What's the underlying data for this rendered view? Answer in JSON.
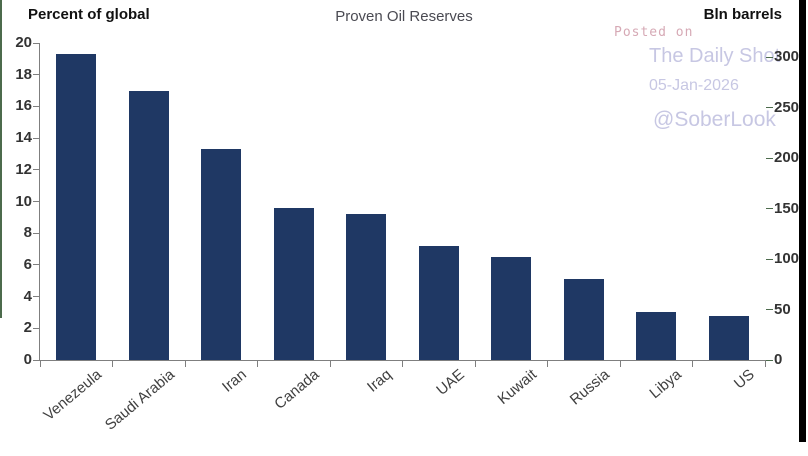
{
  "header": {
    "left_axis_title": "Percent of global",
    "chart_title": "Proven Oil Reserves",
    "right_axis_title": "Bln barrels"
  },
  "watermark": {
    "posted_on": "Posted on",
    "site": "The Daily Shot",
    "date": "05-Jan-2026",
    "handle": "@SoberLook"
  },
  "colors": {
    "bar": "#1f3864",
    "axis_gray": "#7f7f7f",
    "axis_green": "#4c6b4c",
    "tick_text": "#333333",
    "watermark_pink": "#d6a9b5",
    "watermark_lavender": "#c7c7e3"
  },
  "chart_data": {
    "type": "bar",
    "title": "Proven Oil Reserves",
    "categories": [
      "Venezeula",
      "Saudi Arabia",
      "Iran",
      "Canada",
      "Iraq",
      "UAE",
      "Kuwait",
      "Russia",
      "Libya",
      "US"
    ],
    "values_percent_of_global": [
      19.3,
      17.0,
      13.3,
      9.6,
      9.2,
      7.2,
      6.5,
      5.1,
      3.0,
      2.8
    ],
    "values_bln_barrels_est": [
      304,
      268,
      210,
      151,
      145,
      113,
      102,
      80,
      47,
      44
    ],
    "left_axis": {
      "label": "Percent of global",
      "min": 0,
      "max": 20,
      "step": 2
    },
    "right_axis": {
      "label": "Bln barrels",
      "min": 0,
      "max": 300,
      "step": 50
    },
    "legend": false,
    "grid": false,
    "bar_color": "#1f3864"
  }
}
